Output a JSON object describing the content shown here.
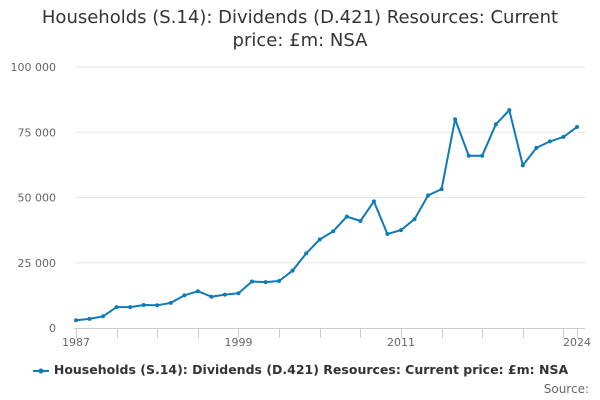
{
  "chart_data": {
    "type": "line",
    "title_lines": [
      "Households (S.14): Dividends (D.421) Resources: Current",
      "price: £m: NSA"
    ],
    "xlabel": "",
    "ylabel": "",
    "x": [
      1987,
      1988,
      1989,
      1990,
      1991,
      1992,
      1993,
      1994,
      1995,
      1996,
      1997,
      1998,
      1999,
      2000,
      2001,
      2002,
      2003,
      2004,
      2005,
      2006,
      2007,
      2008,
      2009,
      2010,
      2011,
      2012,
      2013,
      2014,
      2015,
      2016,
      2017,
      2018,
      2019,
      2020,
      2021,
      2022,
      2023,
      2024
    ],
    "series": [
      {
        "name": "Households (S.14): Dividends (D.421) Resources: Current price: £m: NSA",
        "color": "#0f7ab8",
        "values": [
          3000,
          3500,
          4500,
          8000,
          8000,
          8800,
          8700,
          9600,
          12500,
          14100,
          12000,
          12800,
          13300,
          17800,
          17600,
          18000,
          22000,
          28600,
          33900,
          37100,
          42700,
          41000,
          48500,
          36000,
          37500,
          41700,
          50800,
          53200,
          80000,
          66000,
          66000,
          78000,
          83500,
          62300,
          69000,
          71500,
          73200,
          77000
        ]
      }
    ],
    "xlim": [
      1987,
      2024
    ],
    "ylim": [
      0,
      100000
    ],
    "y_ticks": [
      {
        "value": 0,
        "label": "0"
      },
      {
        "value": 25000,
        "label": "25 000"
      },
      {
        "value": 50000,
        "label": "50 000"
      },
      {
        "value": 75000,
        "label": "75 000"
      },
      {
        "value": 100000,
        "label": "100 000"
      }
    ],
    "x_tick_labels": [
      {
        "value": 1987,
        "label": "1987"
      },
      {
        "value": 1999,
        "label": "1999"
      },
      {
        "value": 2011,
        "label": "2011"
      },
      {
        "value": 2024,
        "label": "2024"
      }
    ],
    "grid": true,
    "legend": "bottom-center"
  },
  "source_label": "Source:"
}
